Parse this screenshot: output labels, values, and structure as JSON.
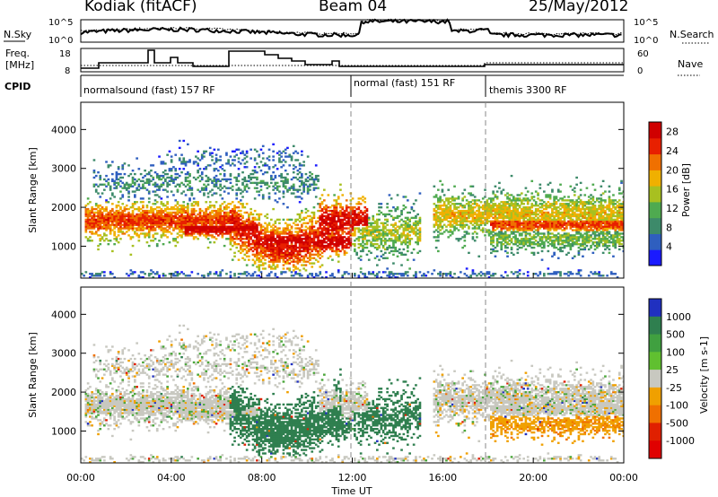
{
  "header": {
    "station": "Kodiak (fitACF)",
    "beam": "Beam 04",
    "date": "25/May/2012"
  },
  "side_labels": {
    "nsky": "N.Sky",
    "freq_line1": "Freq.",
    "freq_line2": "[MHz]",
    "cpid": "CPID",
    "nsearch": "N.Search",
    "nave": "Nave"
  },
  "panel_ticks": {
    "noise_left": [
      "10^5",
      "10^0"
    ],
    "noise_right": [
      "10^5",
      "10^0"
    ],
    "freq_left": [
      "18",
      "8"
    ],
    "nave_right": [
      "60",
      "0"
    ]
  },
  "cpid_segments": [
    {
      "label": "normalsound (fast) 157 RF",
      "start_hour": 0
    },
    {
      "label": "normal (fast) 151 RF",
      "start_hour": 12
    },
    {
      "label": "themis 3300 RF",
      "start_hour": 18
    }
  ],
  "chart_data": [
    {
      "type": "heatmap",
      "ylabel": "Slant Range [km]",
      "xlabel": "Time UT",
      "x_ticks": [
        "00:00",
        "04:00",
        "08:00",
        "12:00",
        "16:00",
        "20:00",
        "00:00"
      ],
      "xlim_hours": [
        0,
        24
      ],
      "y_ticks": [
        1000,
        2000,
        3000,
        4000
      ],
      "ylim": [
        180,
        4700
      ],
      "colorbar": {
        "label": "Power [dB]",
        "range": [
          0,
          30
        ],
        "ticks": [
          4,
          8,
          12,
          16,
          20,
          24,
          28
        ],
        "colors": [
          "#1a1aff",
          "#2f5fbf",
          "#3d8a6a",
          "#4faa50",
          "#a8c020",
          "#f0b000",
          "#f07000",
          "#e82000",
          "#d00000"
        ]
      }
    },
    {
      "type": "heatmap",
      "ylabel": "Slant Range [km]",
      "xlabel": "Time UT",
      "x_ticks": [
        "00:00",
        "04:00",
        "08:00",
        "12:00",
        "16:00",
        "20:00",
        "00:00"
      ],
      "xlim_hours": [
        0,
        24
      ],
      "y_ticks": [
        1000,
        2000,
        3000,
        4000
      ],
      "ylim": [
        180,
        4700
      ],
      "colorbar": {
        "label": "Velocity [m s-1]",
        "ticks": [
          "1000",
          "500",
          "100",
          "25",
          "-25",
          "-100",
          "-500",
          "-1000"
        ],
        "colors": [
          "#2030c0",
          "#2f7f4f",
          "#40a040",
          "#60c030",
          "#c8c8c0",
          "#f0a000",
          "#f07000",
          "#e02000",
          "#e00000"
        ]
      }
    }
  ]
}
